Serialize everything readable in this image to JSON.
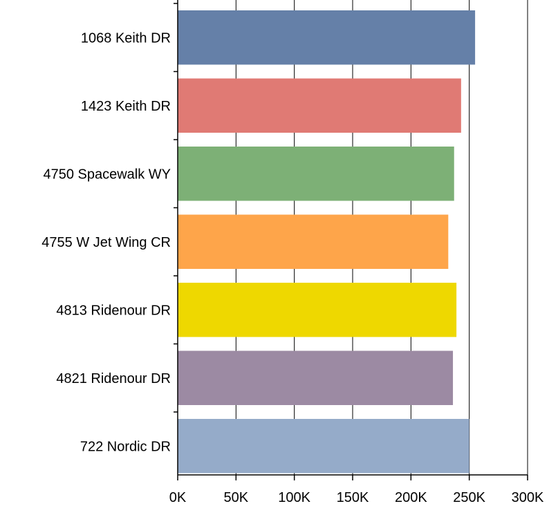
{
  "chart_data": {
    "type": "bar",
    "orientation": "horizontal",
    "title": "",
    "xlabel": "",
    "ylabel": "",
    "categories": [
      "1068 Keith DR",
      "1423 Keith DR",
      "4750 Spacewalk WY",
      "4755 W Jet Wing CR",
      "4813 Ridenour DR",
      "4821 Ridenour DR",
      "722 Nordic DR"
    ],
    "values": [
      255000,
      243000,
      237000,
      232000,
      239000,
      236000,
      250000
    ],
    "colors": [
      "#6580a8",
      "#e07a74",
      "#7db076",
      "#fea54a",
      "#eed800",
      "#9c8aa3",
      "#95abc9"
    ],
    "xlim": [
      0,
      300000
    ],
    "ticks": [
      0,
      50000,
      100000,
      150000,
      200000,
      250000,
      300000
    ],
    "tick_labels": [
      "0K",
      "50K",
      "100K",
      "150K",
      "200K",
      "250K",
      "300K"
    ],
    "grid": true,
    "legend": "none"
  }
}
